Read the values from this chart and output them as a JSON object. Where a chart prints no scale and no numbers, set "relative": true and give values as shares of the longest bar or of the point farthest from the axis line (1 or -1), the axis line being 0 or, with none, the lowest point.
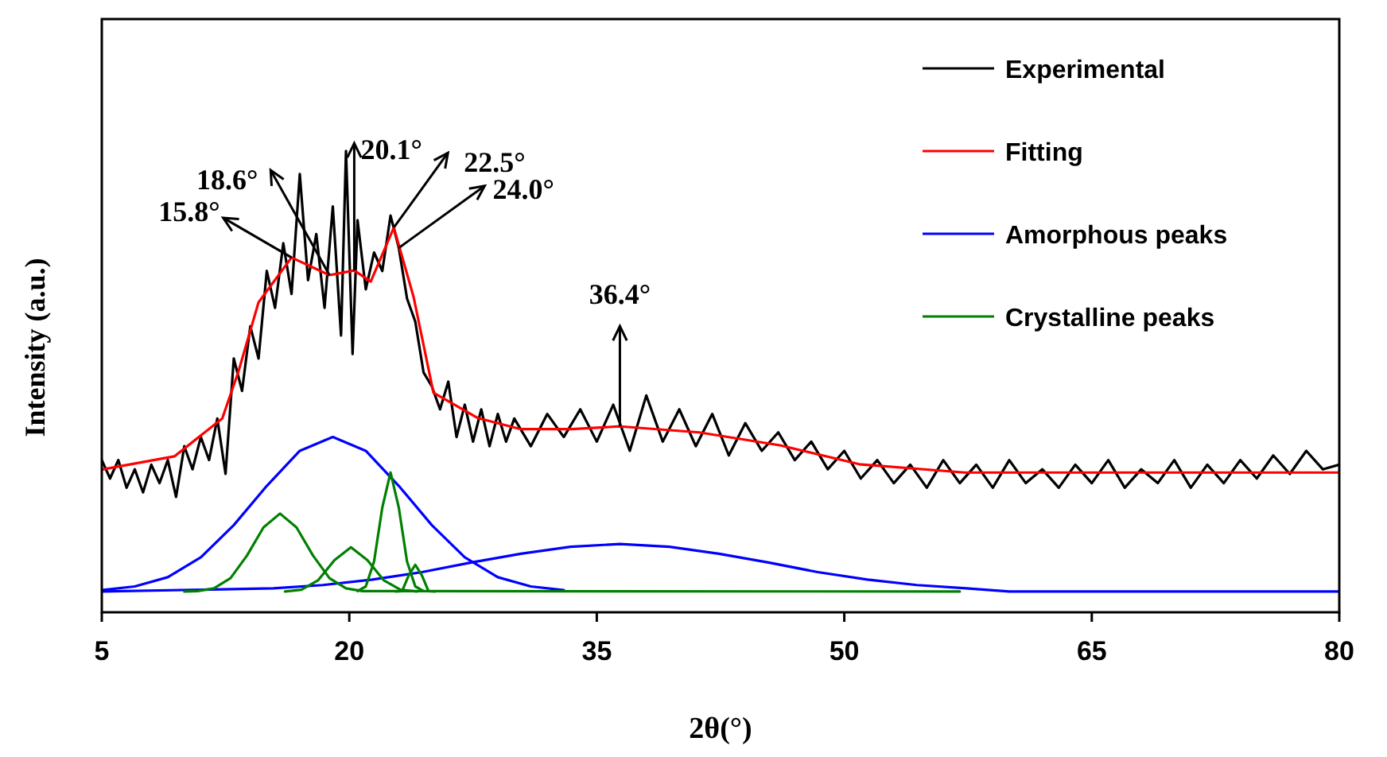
{
  "chart_data": {
    "type": "line",
    "relative": true,
    "xlabel": "2θ(°)",
    "ylabel": "Intensity (a.u.)",
    "xlim": [
      5,
      80
    ],
    "xticks": [
      5,
      20,
      35,
      50,
      65,
      80
    ],
    "legend": "top right",
    "series": [
      {
        "name": "Experimental",
        "color": "#000000",
        "x": [
          5,
          5.5,
          6,
          6.5,
          7,
          7.5,
          8,
          8.5,
          9,
          9.5,
          10,
          10.5,
          11,
          11.5,
          12,
          12.5,
          13,
          13.5,
          14,
          14.5,
          15,
          15.5,
          16,
          16.5,
          17,
          17.5,
          18,
          18.5,
          19,
          19.5,
          19.8,
          20.2,
          20.5,
          21,
          21.5,
          22,
          22.5,
          23,
          23.5,
          24,
          24.5,
          25,
          25.5,
          26,
          26.5,
          27,
          27.5,
          28,
          28.5,
          29,
          29.5,
          30,
          31,
          32,
          33,
          34,
          35,
          36,
          37,
          38,
          39,
          40,
          41,
          42,
          43,
          44,
          45,
          46,
          47,
          48,
          49,
          50,
          51,
          52,
          53,
          54,
          55,
          56,
          57,
          58,
          59,
          60,
          61,
          62,
          63,
          64,
          65,
          66,
          67,
          68,
          69,
          70,
          71,
          72,
          73,
          74,
          75,
          76,
          77,
          78,
          79,
          80
        ],
        "values": [
          0.33,
          0.29,
          0.33,
          0.27,
          0.31,
          0.26,
          0.32,
          0.28,
          0.33,
          0.25,
          0.36,
          0.31,
          0.38,
          0.33,
          0.42,
          0.3,
          0.55,
          0.48,
          0.62,
          0.55,
          0.74,
          0.66,
          0.8,
          0.69,
          0.95,
          0.72,
          0.82,
          0.66,
          0.88,
          0.6,
          1.0,
          0.56,
          0.85,
          0.7,
          0.78,
          0.74,
          0.86,
          0.79,
          0.68,
          0.63,
          0.52,
          0.49,
          0.44,
          0.5,
          0.38,
          0.45,
          0.37,
          0.44,
          0.36,
          0.43,
          0.37,
          0.42,
          0.36,
          0.43,
          0.38,
          0.44,
          0.37,
          0.45,
          0.35,
          0.47,
          0.37,
          0.44,
          0.36,
          0.43,
          0.34,
          0.41,
          0.35,
          0.39,
          0.33,
          0.37,
          0.31,
          0.35,
          0.29,
          0.33,
          0.28,
          0.32,
          0.27,
          0.33,
          0.28,
          0.32,
          0.27,
          0.33,
          0.28,
          0.31,
          0.27,
          0.32,
          0.28,
          0.33,
          0.27,
          0.31,
          0.28,
          0.33,
          0.27,
          0.32,
          0.28,
          0.33,
          0.29,
          0.34,
          0.3,
          0.35,
          0.31,
          0.32
        ]
      },
      {
        "name": "Fitting",
        "color": "#ff0000",
        "x": [
          5.1,
          9.4,
          12.3,
          13.3,
          14.5,
          16.5,
          18.8,
          20.3,
          21.3,
          22.7,
          23.9,
          25.1,
          27.8,
          30.4,
          33.5,
          36.4,
          41.2,
          46.1,
          50.9,
          57.3,
          80
        ],
        "values": [
          0.31,
          0.338,
          0.42,
          0.524,
          0.672,
          0.769,
          0.731,
          0.741,
          0.717,
          0.834,
          0.683,
          0.476,
          0.421,
          0.397,
          0.397,
          0.403,
          0.39,
          0.362,
          0.321,
          0.303,
          0.303
        ]
      },
      {
        "name": "Amorphous peaks",
        "color": "#0000ff",
        "x": [
          5,
          7,
          9,
          11,
          13,
          15,
          17,
          19,
          21,
          23,
          25,
          27,
          29,
          31,
          33
        ],
        "values": [
          0.048,
          0.056,
          0.076,
          0.119,
          0.189,
          0.274,
          0.35,
          0.38,
          0.35,
          0.274,
          0.189,
          0.119,
          0.076,
          0.056,
          0.048
        ]
      },
      {
        "color": "#0000ff",
        "x": [
          5,
          15.4,
          18.4,
          21.4,
          24.4,
          27.4,
          30.4,
          33.4,
          36.4,
          39.4,
          42.4,
          45.4,
          48.4,
          51.4,
          54.4,
          57.4,
          60,
          80
        ],
        "values": [
          0.045,
          0.052,
          0.059,
          0.071,
          0.087,
          0.108,
          0.127,
          0.142,
          0.148,
          0.142,
          0.127,
          0.108,
          0.087,
          0.071,
          0.059,
          0.052,
          0.045,
          0.045
        ]
      },
      {
        "name": "Crystalline peaks",
        "color": "#008000",
        "x": [
          10,
          10.8,
          11.8,
          12.8,
          13.8,
          14.8,
          15.8,
          16.8,
          17.8,
          18.8,
          19.8,
          20.8,
          57
        ],
        "values": [
          0.045,
          0.046,
          0.052,
          0.074,
          0.123,
          0.184,
          0.214,
          0.184,
          0.123,
          0.074,
          0.052,
          0.046,
          0.045
        ]
      },
      {
        "color": "#008000",
        "x": [
          16.1,
          17.1,
          18.1,
          19.1,
          20.1,
          21.1,
          22.1,
          23.1,
          24.1
        ],
        "values": [
          0.045,
          0.049,
          0.069,
          0.113,
          0.141,
          0.113,
          0.069,
          0.049,
          0.045
        ]
      },
      {
        "color": "#008000",
        "x": [
          20.5,
          21,
          21.5,
          22,
          22.5,
          23,
          23.5,
          24,
          24.5
        ],
        "values": [
          0.046,
          0.056,
          0.11,
          0.227,
          0.303,
          0.227,
          0.11,
          0.056,
          0.046
        ]
      },
      {
        "color": "#008000",
        "x": [
          22.8,
          23.2,
          23.6,
          24,
          24.4,
          24.8,
          25.2
        ],
        "values": [
          0.045,
          0.046,
          0.08,
          0.103,
          0.08,
          0.046,
          0.045
        ]
      }
    ],
    "annotations": [
      {
        "text": "15.8°",
        "x": 16.5,
        "y": 0.769
      },
      {
        "text": "18.6°",
        "x": 18.8,
        "y": 0.731
      },
      {
        "text": "20.1°",
        "x": 20.3,
        "y": 0.741
      },
      {
        "text": "22.5°",
        "x": 22.7,
        "y": 0.834
      },
      {
        "text": "24.0°",
        "x": 23,
        "y": 0.79
      },
      {
        "text": "36.4°",
        "x": 36.4,
        "y": 0.403
      }
    ]
  }
}
